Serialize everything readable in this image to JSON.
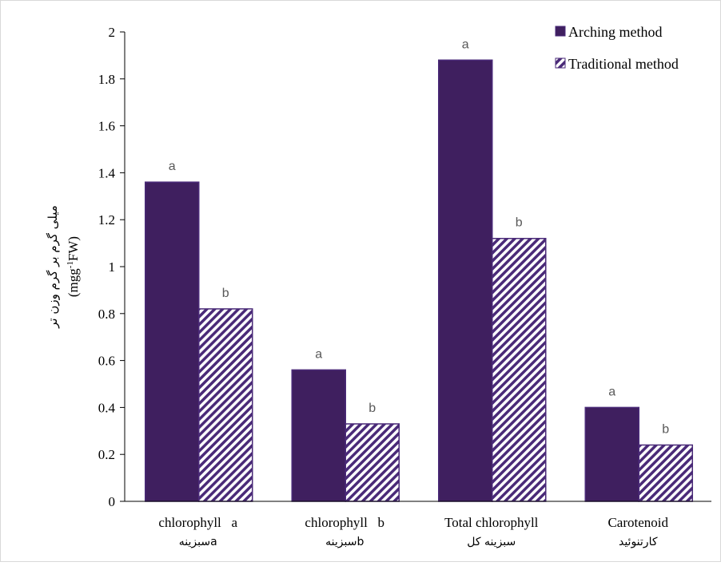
{
  "chart_data": {
    "type": "bar",
    "categories": [
      {
        "en": "chlorophyll   a",
        "fa": "سبزینهa"
      },
      {
        "en": "chlorophyll   b",
        "fa": "سبزینهb"
      },
      {
        "en": "Total chlorophyll",
        "fa": "سبزینه کل"
      },
      {
        "en": "Carotenoid",
        "fa": "کارتنوئید"
      }
    ],
    "series": [
      {
        "name": "Arching method",
        "values": [
          1.36,
          0.56,
          1.88,
          0.4
        ],
        "labels": [
          "a",
          "a",
          "a",
          "a"
        ],
        "color": "#3f1f5f",
        "pattern": "solid"
      },
      {
        "name": "Traditional method",
        "values": [
          0.82,
          0.33,
          1.12,
          0.24
        ],
        "labels": [
          "b",
          "b",
          "b",
          "b"
        ],
        "color": "#4a2a78",
        "pattern": "diagonal-hatch"
      }
    ],
    "ylabel_fa": "میلی گرم بر گرم وزن تر",
    "ylabel_en": "(mgg-1FW)",
    "ylabel_en_parts": {
      "pre": "(mgg",
      "sup": "-1",
      "post": "FW)"
    },
    "ylim": [
      0,
      2
    ],
    "yticks": [
      "0",
      "0.2",
      "0.4",
      "0.6",
      "0.8",
      "1",
      "1.2",
      "1.4",
      "1.6",
      "1.8",
      "2"
    ],
    "ytick_values": [
      0,
      0.2,
      0.4,
      0.6,
      0.8,
      1,
      1.2,
      1.4,
      1.6,
      1.8,
      2
    ],
    "grid": false,
    "legend_position": "top-right"
  }
}
